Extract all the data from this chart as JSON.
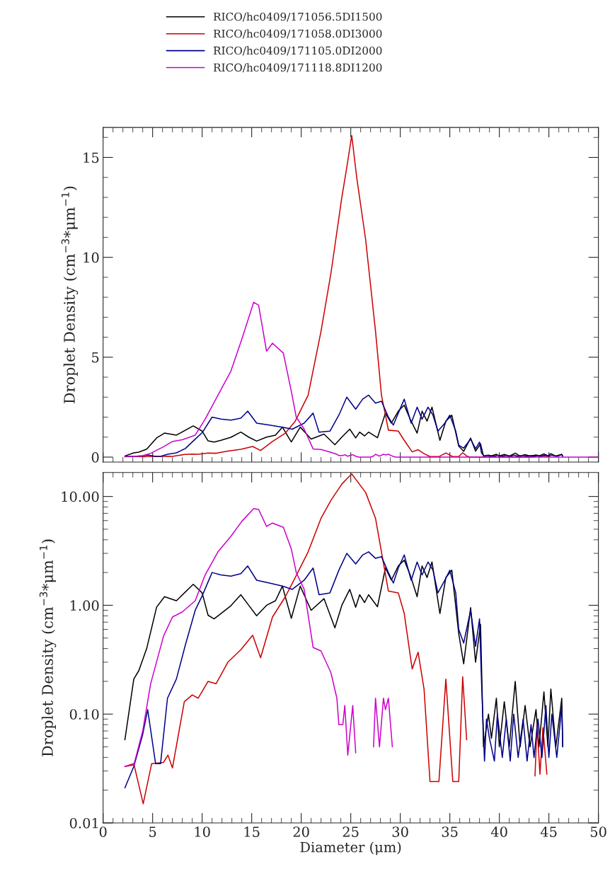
{
  "chart_data": [
    {
      "type": "line",
      "ylabel": "Droplet Density (cm$^{−3}$*μm$^{−1}$)",
      "xlim": [
        0,
        50
      ],
      "xticks": [
        0,
        5,
        10,
        15,
        20,
        25,
        30,
        35,
        40,
        45,
        50
      ],
      "ylim": [
        -0.25,
        16.5
      ],
      "yticks": [
        0,
        5,
        10,
        15
      ],
      "tick_labels": "y",
      "legend": "top",
      "series": [
        {
          "name": "RICO/hc0409/171056.5DI1500",
          "color": "#000000",
          "x": [
            2.2,
            3.1,
            3.6,
            4.4,
            5.4,
            6.2,
            7.4,
            9.1,
            10.0,
            10.6,
            11.2,
            11.9,
            12.9,
            13.9,
            14.7,
            15.5,
            16.5,
            17.4,
            18.1,
            19.0,
            19.9,
            21.0,
            22.3,
            23.4,
            24.1,
            24.9,
            25.5,
            25.9,
            26.4,
            26.8,
            27.7,
            28.5,
            29.1,
            29.8,
            30.4,
            31.0,
            31.7,
            32.2,
            32.7,
            33.2,
            34.0,
            34.6,
            35.2,
            35.9,
            36.4,
            37.1,
            37.6,
            38.1,
            38.4,
            38.9,
            39.2,
            39.7,
            40.0,
            40.5,
            41.0,
            41.6,
            42.1,
            42.6,
            43.1,
            43.7,
            44.0,
            44.5,
            44.9,
            45.2,
            45.7,
            46.3,
            46.4
          ],
          "values": [
            0.058,
            0.21,
            0.25,
            0.4,
            0.96,
            1.2,
            1.1,
            1.56,
            1.3,
            0.81,
            0.75,
            0.84,
            0.99,
            1.25,
            1.0,
            0.8,
            1.0,
            1.1,
            1.5,
            0.76,
            1.5,
            0.9,
            1.15,
            0.62,
            1.0,
            1.4,
            0.96,
            1.25,
            1.06,
            1.25,
            0.97,
            2.2,
            1.7,
            2.3,
            2.6,
            1.9,
            1.2,
            2.3,
            1.8,
            2.5,
            0.84,
            1.8,
            2.1,
            0.55,
            0.29,
            0.95,
            0.3,
            0.67,
            0.05,
            0.1,
            0.06,
            0.14,
            0.05,
            0.13,
            0.05,
            0.2,
            0.05,
            0.12,
            0.05,
            0.11,
            0.05,
            0.16,
            0.05,
            0.17,
            0.05,
            0.14,
            0.05
          ]
        },
        {
          "name": "RICO/hc0409/171058.0DI3000",
          "color": "#cc0000",
          "x": [
            2.2,
            3.1,
            4.05,
            4.9,
            6.1,
            6.55,
            7.0,
            8.2,
            9.0,
            9.6,
            10.6,
            11.4,
            12.6,
            13.9,
            15.1,
            15.9,
            17.1,
            18.4,
            19.4,
            20.7,
            22.0,
            23.0,
            24.1,
            24.6,
            25.1,
            25.6,
            26.5,
            27.5,
            28.1,
            28.8,
            29.8,
            30.4,
            31.2,
            31.8,
            32.4,
            33.0,
            33.9,
            34.6,
            35.3,
            35.9,
            36.3,
            36.7,
            37.0,
            43.3,
            43.6,
            43.8,
            44.1,
            44.4,
            44.8
          ],
          "values": [
            0.033,
            0.035,
            0.015,
            0.035,
            0.036,
            0.042,
            0.032,
            0.13,
            0.15,
            0.14,
            0.2,
            0.19,
            0.3,
            0.39,
            0.53,
            0.33,
            0.78,
            1.2,
            1.8,
            3.1,
            6.3,
            9.2,
            13.0,
            14.5,
            16.1,
            14.0,
            10.9,
            6.3,
            3.1,
            1.35,
            1.3,
            0.84,
            0.26,
            0.37,
            0.17,
            0.024,
            0.024,
            0.21,
            0.024,
            0.024,
            0.22,
            0.058,
            0,
            0,
            0.027,
            0.08,
            0.028,
            0.075,
            0.028
          ]
        },
        {
          "name": "RICO/hc0409/171105.0DI2000",
          "color": "#00008b",
          "x": [
            2.2,
            3.1,
            4.0,
            4.5,
            5.3,
            5.8,
            6.5,
            7.4,
            8.3,
            9.3,
            10.0,
            11.0,
            11.9,
            12.9,
            13.9,
            14.6,
            15.5,
            16.8,
            18.1,
            19.1,
            20.3,
            21.2,
            21.8,
            22.9,
            23.8,
            24.6,
            25.5,
            26.2,
            26.8,
            27.5,
            28.1,
            28.8,
            29.3,
            29.8,
            30.4,
            31.1,
            31.7,
            32.2,
            32.8,
            33.3,
            33.8,
            34.5,
            35.0,
            35.6,
            35.9,
            36.4,
            37.1,
            37.6,
            38.0,
            38.2,
            38.5,
            38.7,
            39.0,
            39.5,
            39.8,
            40.3,
            40.7,
            41.1,
            41.45,
            41.9,
            42.4,
            42.8,
            43.2,
            43.5,
            43.9,
            44.3,
            44.7,
            45.0,
            45.3,
            45.8,
            46.3,
            46.4
          ],
          "values": [
            0.021,
            0.033,
            0.065,
            0.11,
            0.035,
            0.035,
            0.14,
            0.21,
            0.43,
            0.9,
            1.22,
            2.0,
            1.9,
            1.85,
            1.95,
            2.3,
            1.7,
            1.6,
            1.5,
            1.4,
            1.7,
            2.2,
            1.25,
            1.3,
            2.1,
            3.0,
            2.4,
            2.9,
            3.1,
            2.7,
            2.8,
            2.0,
            1.6,
            2.2,
            2.9,
            1.7,
            2.5,
            1.9,
            2.5,
            2.1,
            1.3,
            1.7,
            2.1,
            1.3,
            0.6,
            0.45,
            0.9,
            0.42,
            0.75,
            0.2,
            0.037,
            0.09,
            0.06,
            0.037,
            0.1,
            0.04,
            0.09,
            0.037,
            0.1,
            0.04,
            0.09,
            0.037,
            0.08,
            0.04,
            0.09,
            0.04,
            0.12,
            0.04,
            0.1,
            0.04,
            0.12,
            0.05
          ]
        },
        {
          "name": "RICO/hc0409/171118.8DI1200",
          "color": "#cc00cc",
          "x": [
            2.2,
            3.1,
            4.0,
            4.8,
            6.1,
            7.0,
            8.0,
            9.3,
            10.3,
            11.6,
            12.9,
            14.0,
            15.2,
            15.7,
            16.5,
            17.1,
            18.2,
            19.0,
            19.5,
            20.3,
            21.2,
            22.0,
            23.0,
            23.6,
            23.8,
            24.2,
            24.4,
            24.7,
            25.2,
            25.5,
            25.8,
            27.0,
            27.3,
            27.5,
            27.9,
            28.3,
            28.5,
            28.8,
            29.2,
            29.5,
            50
          ],
          "values": [
            0.033,
            0.034,
            0.07,
            0.19,
            0.52,
            0.78,
            0.87,
            1.1,
            1.9,
            3.1,
            4.3,
            5.9,
            7.75,
            7.6,
            5.3,
            5.7,
            5.2,
            3.3,
            2.0,
            1.4,
            0.41,
            0.38,
            0.24,
            0.14,
            0.08,
            0.08,
            0.12,
            0.042,
            0.12,
            0.044,
            0,
            0,
            0.05,
            0.14,
            0.05,
            0.14,
            0.11,
            0.14,
            0.05,
            0,
            0
          ]
        }
      ]
    },
    {
      "type": "line",
      "xlabel": "Diameter (μm)",
      "ylabel": "Droplet Density (cm$^{−3}$*μm$^{−1}$)",
      "log": true,
      "xlim": [
        0,
        50
      ],
      "xticks": [
        0,
        5,
        10,
        15,
        20,
        25,
        30,
        35,
        40,
        45,
        50
      ],
      "ylim": [
        0.01,
        16.6
      ],
      "yticks": [
        {
          "value": 0.01,
          "label": "0.01"
        },
        {
          "value": 0.1,
          "label": "0.10"
        },
        {
          "value": 1,
          "label": "1.00"
        },
        {
          "value": 10,
          "label": "10.00"
        }
      ],
      "series": [
        {
          "color": "#000000",
          "x": [
            2.2,
            3.1,
            3.6,
            4.4,
            5.4,
            6.2,
            7.4,
            9.1,
            10.0,
            10.6,
            11.2,
            11.9,
            12.9,
            13.9,
            14.7,
            15.5,
            16.5,
            17.4,
            18.1,
            19.0,
            19.9,
            21.0,
            22.3,
            23.4,
            24.1,
            24.9,
            25.5,
            25.9,
            26.4,
            26.8,
            27.7,
            28.5,
            29.1,
            29.8,
            30.4,
            31.0,
            31.7,
            32.2,
            32.7,
            33.2,
            34.0,
            34.6,
            35.2,
            35.9,
            36.4,
            37.1,
            37.6,
            38.1,
            38.4,
            38.9,
            39.2,
            39.7,
            40.0,
            40.5,
            41.0,
            41.6,
            42.1,
            42.6,
            43.1,
            43.7,
            44.0,
            44.5,
            44.9,
            45.2,
            45.7,
            46.3,
            46.4
          ],
          "values": [
            0.058,
            0.21,
            0.25,
            0.4,
            0.96,
            1.2,
            1.1,
            1.56,
            1.3,
            0.81,
            0.75,
            0.84,
            0.99,
            1.25,
            1.0,
            0.8,
            1.0,
            1.1,
            1.5,
            0.76,
            1.5,
            0.9,
            1.15,
            0.62,
            1.0,
            1.4,
            0.96,
            1.25,
            1.06,
            1.25,
            0.97,
            2.2,
            1.7,
            2.3,
            2.6,
            1.9,
            1.2,
            2.3,
            1.8,
            2.5,
            0.84,
            1.8,
            2.1,
            0.55,
            0.29,
            0.95,
            0.3,
            0.67,
            0.05,
            0.1,
            0.06,
            0.14,
            0.05,
            0.13,
            0.05,
            0.2,
            0.05,
            0.12,
            0.05,
            0.11,
            0.05,
            0.16,
            0.05,
            0.17,
            0.05,
            0.14,
            0.05
          ]
        },
        {
          "color": "#cc0000",
          "x": [
            2.2,
            3.1,
            4.05,
            4.9,
            6.1,
            6.55,
            7.0,
            8.2,
            9.0,
            9.6,
            10.6,
            11.4,
            12.6,
            13.9,
            15.1,
            15.9,
            17.1,
            18.4,
            19.4,
            20.7,
            22.0,
            23.0,
            24.1,
            24.6,
            25.1,
            25.6,
            26.5,
            27.5,
            28.1,
            28.8,
            29.8,
            30.4,
            31.2,
            31.8,
            32.4,
            33.0,
            33.9,
            34.6,
            35.3,
            35.9,
            36.3,
            36.7,
            40.0,
            43.6,
            43.8,
            44.1,
            44.4,
            44.8
          ],
          "values": [
            0.033,
            0.035,
            0.015,
            0.035,
            0.036,
            0.042,
            0.032,
            0.13,
            0.15,
            0.14,
            0.2,
            0.19,
            0.3,
            0.39,
            0.53,
            0.33,
            0.78,
            1.2,
            1.8,
            3.1,
            6.3,
            9.2,
            13.0,
            14.5,
            16.1,
            14.0,
            10.9,
            6.3,
            3.1,
            1.35,
            1.3,
            0.84,
            0.26,
            0.37,
            0.17,
            0.024,
            0.024,
            0.21,
            0.024,
            0.024,
            0.22,
            0.058,
            null,
            0.027,
            0.08,
            0.028,
            0.075,
            0.028
          ]
        },
        {
          "color": "#00008b",
          "x": [
            2.2,
            3.1,
            4.0,
            4.5,
            5.3,
            5.8,
            6.5,
            7.4,
            8.3,
            9.3,
            10.0,
            11.0,
            11.9,
            12.9,
            13.9,
            14.6,
            15.5,
            16.8,
            18.1,
            19.1,
            20.3,
            21.2,
            21.8,
            22.9,
            23.8,
            24.6,
            25.5,
            26.2,
            26.8,
            27.5,
            28.1,
            28.8,
            29.3,
            29.8,
            30.4,
            31.1,
            31.7,
            32.2,
            32.8,
            33.3,
            33.8,
            34.5,
            35.0,
            35.6,
            35.9,
            36.4,
            37.1,
            37.6,
            38.0,
            38.2,
            38.5,
            38.7,
            39.0,
            39.5,
            39.8,
            40.3,
            40.7,
            41.1,
            41.45,
            41.9,
            42.4,
            42.8,
            43.2,
            43.5,
            43.9,
            44.3,
            44.7,
            45.0,
            45.3,
            45.8,
            46.3,
            46.4
          ],
          "values": [
            0.021,
            0.033,
            0.065,
            0.11,
            0.035,
            0.035,
            0.14,
            0.21,
            0.43,
            0.9,
            1.22,
            2.0,
            1.9,
            1.85,
            1.95,
            2.3,
            1.7,
            1.6,
            1.5,
            1.4,
            1.7,
            2.2,
            1.25,
            1.3,
            2.1,
            3.0,
            2.4,
            2.9,
            3.1,
            2.7,
            2.8,
            2.0,
            1.6,
            2.2,
            2.9,
            1.7,
            2.5,
            1.9,
            2.5,
            2.1,
            1.3,
            1.7,
            2.1,
            1.3,
            0.6,
            0.45,
            0.9,
            0.42,
            0.75,
            0.2,
            0.037,
            0.09,
            0.06,
            0.037,
            0.1,
            0.04,
            0.09,
            0.037,
            0.1,
            0.04,
            0.09,
            0.037,
            0.08,
            0.04,
            0.09,
            0.04,
            0.12,
            0.04,
            0.1,
            0.04,
            0.12,
            0.05
          ]
        },
        {
          "color": "#cc00cc",
          "x": [
            2.2,
            3.1,
            4.0,
            4.8,
            6.1,
            7.0,
            8.0,
            9.3,
            10.3,
            11.6,
            12.9,
            14.0,
            15.2,
            15.7,
            16.5,
            17.1,
            18.2,
            19.0,
            19.5,
            20.3,
            21.2,
            22.0,
            23.0,
            23.6,
            23.8,
            24.2,
            24.4,
            24.7,
            25.2,
            25.5,
            26.4,
            27.3,
            27.5,
            27.9,
            28.3,
            28.5,
            28.8,
            29.2
          ],
          "values": [
            0.033,
            0.034,
            0.07,
            0.19,
            0.52,
            0.78,
            0.87,
            1.1,
            1.9,
            3.1,
            4.3,
            5.9,
            7.75,
            7.6,
            5.3,
            5.7,
            5.2,
            3.3,
            2.0,
            1.4,
            0.41,
            0.38,
            0.24,
            0.14,
            0.08,
            0.08,
            0.12,
            0.042,
            0.12,
            0.044,
            null,
            0.05,
            0.14,
            0.05,
            0.14,
            0.11,
            0.14,
            0.05
          ]
        }
      ]
    }
  ]
}
